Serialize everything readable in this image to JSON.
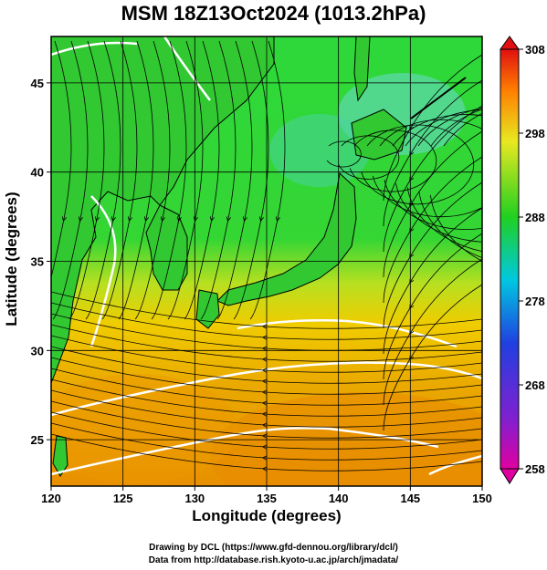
{
  "title": "MSM 18Z13Oct2024 (1013.2hPa)",
  "axes": {
    "xlabel": "Longitude (degrees)",
    "ylabel": "Latitude  (degrees)",
    "xlim": [
      120,
      150
    ],
    "ylim": [
      22.4,
      47.6
    ],
    "x_ticks": [
      "120",
      "125",
      "130",
      "135",
      "140",
      "145",
      "150"
    ],
    "y_ticks": [
      "25",
      "30",
      "35",
      "40",
      "45"
    ],
    "grid": true
  },
  "colorbar": {
    "min": 258,
    "max": 308,
    "labels": [
      "308",
      "298",
      "288",
      "278",
      "268",
      "258"
    ],
    "colors": [
      "#e8008a",
      "#3040e0",
      "#00c8e8",
      "#20d020",
      "#e8e820",
      "#ff8000",
      "#e01010"
    ]
  },
  "map": {
    "field_colors": {
      "land_green": "#3cd23c",
      "sea_cool": "#40d8a0",
      "sea_warm": "#f0c000",
      "sea_hot": "#e88000",
      "isobar": "#ffffff",
      "streamline": "#000000"
    }
  },
  "credits": {
    "line1": "Drawing by DCL (https://www.gfd-dennou.org/library/dcl/)",
    "line2": "Data from http://database.rish.kyoto-u.ac.jp/arch/jmadata/"
  }
}
